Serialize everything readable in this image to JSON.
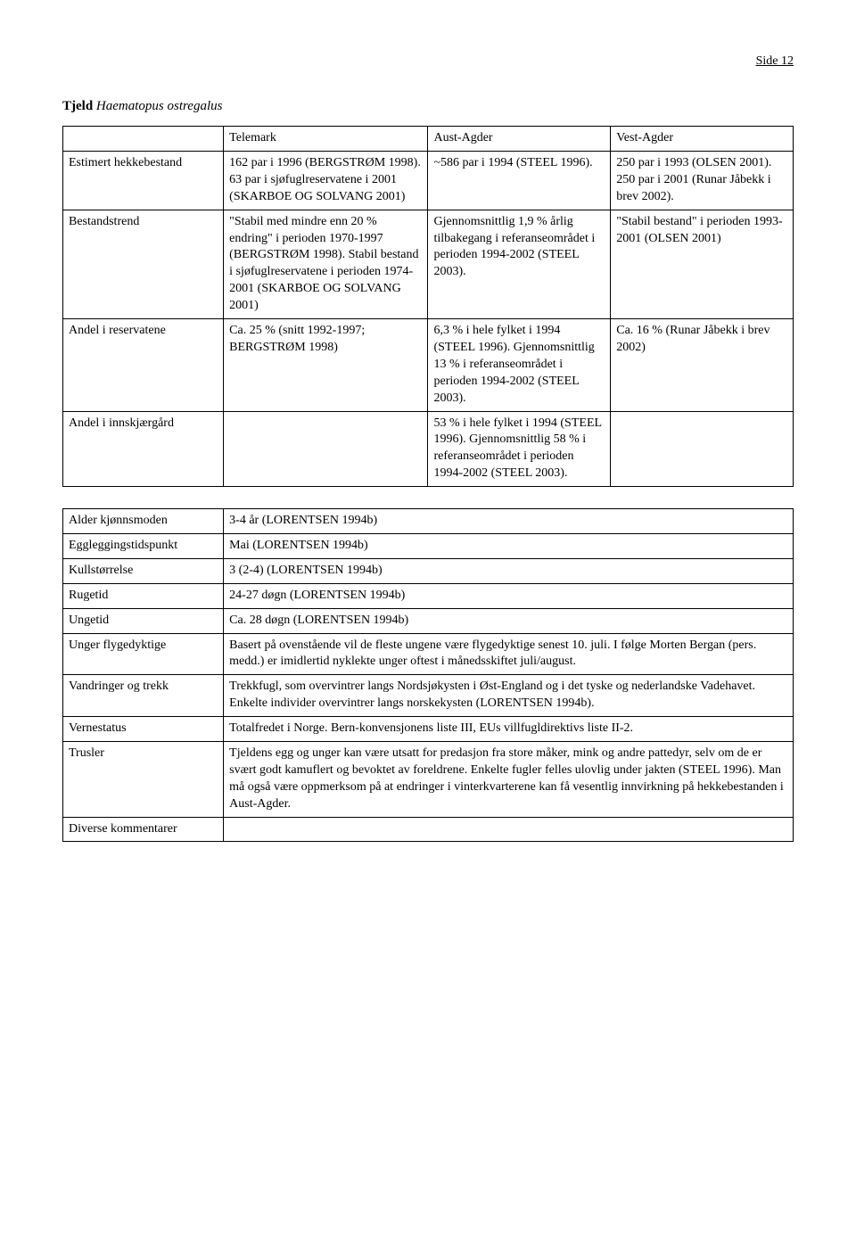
{
  "page_label": "Side 12",
  "title_bold": "Tjeld",
  "title_italic": "Haematopus ostregalus",
  "table1": {
    "headers": [
      "",
      "Telemark",
      "Aust-Agder",
      "Vest-Agder"
    ],
    "rows": [
      {
        "label": "Estimert hekkebestand",
        "telemark": "162 par i 1996 (BERGSTRØM 1998). 63 par i sjøfuglreservatene i 2001 (SKARBOE OG SOLVANG 2001)",
        "aust": "~586 par i 1994 (STEEL 1996).",
        "vest": "250 par i 1993 (OLSEN 2001). 250 par i 2001 (Runar Jåbekk i brev 2002)."
      },
      {
        "label": "Bestandstrend",
        "telemark": "\"Stabil med mindre enn 20 % endring\" i perioden 1970-1997 (BERGSTRØM 1998). Stabil bestand i sjøfuglreservatene i perioden 1974-2001 (SKARBOE OG SOLVANG 2001)",
        "aust": "Gjennomsnittlig 1,9 % årlig tilbakegang i referanseområdet i perioden 1994-2002 (STEEL 2003).",
        "vest": "\"Stabil bestand\" i perioden 1993-2001 (OLSEN 2001)"
      },
      {
        "label": "Andel i reservatene",
        "telemark": "Ca. 25 % (snitt 1992-1997; BERGSTRØM 1998)",
        "aust": "6,3 % i hele fylket i 1994 (STEEL 1996). Gjennomsnittlig 13 % i referanseområdet i perioden 1994-2002 (STEEL 2003).",
        "vest": "Ca. 16 % (Runar Jåbekk i brev 2002)"
      },
      {
        "label": "Andel i innskjærgård",
        "telemark": "",
        "aust": "53 % i hele fylket i 1994 (STEEL 1996). Gjennomsnittlig 58 % i referanseområdet i perioden 1994-2002 (STEEL 2003).",
        "vest": ""
      }
    ]
  },
  "table2": {
    "rows": [
      {
        "label": "Alder kjønnsmoden",
        "value": "3-4 år (LORENTSEN 1994b)"
      },
      {
        "label": "Eggleggingstidspunkt",
        "value": "Mai (LORENTSEN 1994b)"
      },
      {
        "label": "Kullstørrelse",
        "value": "3 (2-4) (LORENTSEN 1994b)"
      },
      {
        "label": "Rugetid",
        "value": "24-27 døgn (LORENTSEN 1994b)"
      },
      {
        "label": "Ungetid",
        "value": "Ca. 28 døgn (LORENTSEN 1994b)"
      },
      {
        "label": "Unger flygedyktige",
        "value": "Basert på ovenstående vil de fleste ungene være flygedyktige senest 10. juli. I følge Morten Bergan (pers. medd.) er imidlertid nyklekte unger oftest i månedsskiftet juli/august."
      },
      {
        "label": "Vandringer og trekk",
        "value": "Trekkfugl, som overvintrer langs Nordsjøkysten i Øst-England og i det tyske og nederlandske Vadehavet. Enkelte individer overvintrer langs norskekysten (LORENTSEN 1994b)."
      },
      {
        "label": "Vernestatus",
        "value": "Totalfredet i Norge. Bern-konvensjonens liste III, EUs villfugldirektivs liste II-2."
      },
      {
        "label": "Trusler",
        "value": "Tjeldens egg og unger kan være utsatt for predasjon fra store måker, mink og andre pattedyr, selv om de er svært godt kamuflert og bevoktet av foreldrene. Enkelte fugler felles ulovlig under jakten (STEEL 1996). Man må også være oppmerksom på at endringer i vinterkvarterene kan få vesentlig innvirkning på hekkebestanden i Aust-Agder."
      },
      {
        "label": "Diverse kommentarer",
        "value": ""
      }
    ]
  }
}
